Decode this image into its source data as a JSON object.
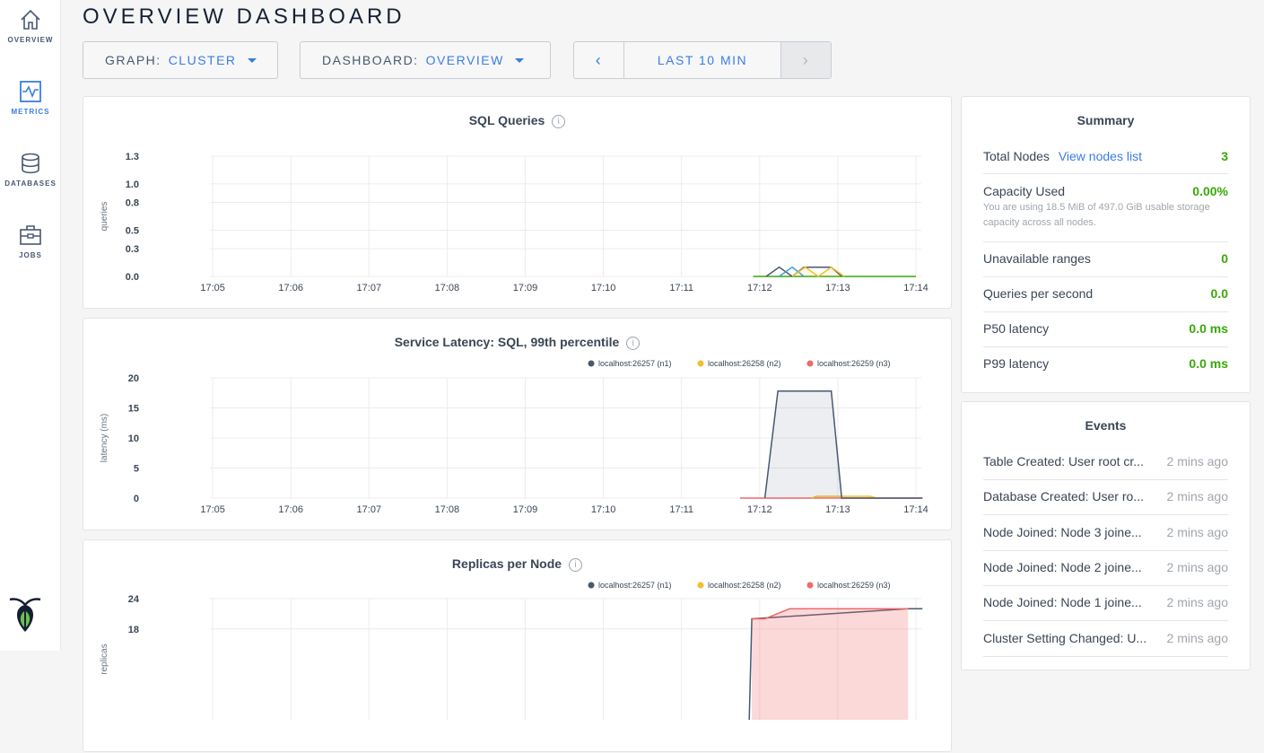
{
  "sidebar": {
    "items": [
      {
        "label": "OVERVIEW",
        "icon": "home-icon"
      },
      {
        "label": "METRICS",
        "icon": "metrics-icon",
        "active": true
      },
      {
        "label": "DATABASES",
        "icon": "database-icon"
      },
      {
        "label": "JOBS",
        "icon": "briefcase-icon"
      }
    ],
    "logo": "cockroach-logo"
  },
  "header": {
    "title": "OVERVIEW DASHBOARD"
  },
  "controls": {
    "graph_label": "GRAPH:",
    "graph_value": "CLUSTER",
    "dashboard_label": "DASHBOARD:",
    "dashboard_value": "OVERVIEW",
    "time_range": "LAST 10 MIN",
    "prev": "‹",
    "next": "›"
  },
  "colors": {
    "n1": "#475872",
    "n2": "#f2be2c",
    "n3": "#f16969",
    "blue": "#3a9de1",
    "green": "#37a806",
    "accent": "#3a7de1"
  },
  "chart_data": [
    {
      "type": "line",
      "title": "SQL Queries",
      "ylabel": "queries",
      "yticks": [
        "0.0",
        "0.3",
        "0.5",
        "0.8",
        "1.0",
        "1.3"
      ],
      "ylim": [
        0,
        1.3
      ],
      "xticks": [
        "17:05",
        "17:06",
        "17:07",
        "17:08",
        "17:09",
        "17:10",
        "17:11",
        "17:12",
        "17:13",
        "17:14"
      ],
      "xlim": [
        "17:04:00",
        "17:14:00"
      ],
      "legend": [],
      "series": [
        {
          "color": "#37a806",
          "points": [
            [
              "17:11:55",
              0
            ],
            [
              "17:14:00",
              0
            ]
          ]
        },
        {
          "color": "#475872",
          "points": [
            [
              "17:12:05",
              0
            ],
            [
              "17:12:15",
              0.1
            ],
            [
              "17:12:25",
              0
            ],
            [
              "17:12:34",
              0.1
            ],
            [
              "17:12:55",
              0.1
            ],
            [
              "17:13:03",
              0
            ]
          ]
        },
        {
          "color": "#3a9de1",
          "points": [
            [
              "17:12:15",
              0
            ],
            [
              "17:12:25",
              0.1
            ],
            [
              "17:12:34",
              0
            ]
          ]
        },
        {
          "color": "#f2be2c",
          "fill": true,
          "points": [
            [
              "17:12:25",
              0
            ],
            [
              "17:12:35",
              0.1
            ],
            [
              "17:12:45",
              0
            ],
            [
              "17:12:55",
              0.1
            ],
            [
              "17:13:05",
              0
            ]
          ]
        }
      ]
    },
    {
      "type": "line",
      "title": "Service Latency: SQL, 99th percentile",
      "ylabel": "latency (ms)",
      "yticks": [
        "0",
        "5",
        "10",
        "15",
        "20"
      ],
      "ylim": [
        0,
        20
      ],
      "xticks": [
        "17:05",
        "17:06",
        "17:07",
        "17:08",
        "17:09",
        "17:10",
        "17:11",
        "17:12",
        "17:13",
        "17:14"
      ],
      "xlim": [
        "17:04:00",
        "17:14:00"
      ],
      "legend": [
        {
          "name": "localhost:26257 (n1)",
          "color": "#475872"
        },
        {
          "name": "localhost:26258 (n2)",
          "color": "#f2be2c"
        },
        {
          "name": "localhost:26259 (n3)",
          "color": "#f16969"
        }
      ],
      "series": [
        {
          "color": "#f16969",
          "points": [
            [
              "17:11:45",
              0
            ],
            [
              "17:14:05",
              0
            ]
          ]
        },
        {
          "color": "#f2be2c",
          "points": [
            [
              "17:12:40",
              0
            ],
            [
              "17:12:44",
              0.3
            ],
            [
              "17:13:25",
              0.3
            ],
            [
              "17:13:30",
              0
            ]
          ]
        },
        {
          "color": "#475872",
          "fill": true,
          "points": [
            [
              "17:12:04",
              0
            ],
            [
              "17:12:14",
              17.8
            ],
            [
              "17:12:55",
              17.8
            ],
            [
              "17:13:03",
              0
            ],
            [
              "17:14:05",
              0
            ]
          ]
        }
      ]
    },
    {
      "type": "area",
      "title": "Replicas per Node",
      "ylabel": "replicas",
      "yticks": [
        "18",
        "24"
      ],
      "ylim": [
        0,
        24
      ],
      "xlim": [
        "17:04:00",
        "17:14:00"
      ],
      "legend": [
        {
          "name": "localhost:26257 (n1)",
          "color": "#475872"
        },
        {
          "name": "localhost:26258 (n2)",
          "color": "#f2be2c"
        },
        {
          "name": "localhost:26259 (n3)",
          "color": "#f16969"
        }
      ],
      "series": [
        {
          "color": "#475872",
          "points": [
            [
              "17:11:52",
              0
            ],
            [
              "17:11:54",
              20
            ],
            [
              "17:13:54",
              22
            ],
            [
              "17:14:05",
              22
            ]
          ]
        },
        {
          "color": "#f16969",
          "fill": true,
          "points": [
            [
              "17:11:54",
              20
            ],
            [
              "17:12:04",
              20
            ],
            [
              "17:12:23",
              22
            ],
            [
              "17:13:54",
              22
            ]
          ]
        }
      ]
    }
  ],
  "summary": {
    "title": "Summary",
    "rows": [
      {
        "label": "Total Nodes",
        "link": "View nodes list",
        "value": "3"
      },
      {
        "label": "Capacity Used",
        "value": "0.00%",
        "sub": "You are using 18.5 MiB of 497.0 GiB usable storage capacity across all nodes."
      },
      {
        "label": "Unavailable ranges",
        "value": "0"
      },
      {
        "label": "Queries per second",
        "value": "0.0"
      },
      {
        "label": "P50 latency",
        "value": "0.0 ms"
      },
      {
        "label": "P99 latency",
        "value": "0.0 ms"
      }
    ]
  },
  "events": {
    "title": "Events",
    "items": [
      {
        "label": "Table Created: User root cr...",
        "time": "2 mins ago"
      },
      {
        "label": "Database Created: User ro...",
        "time": "2 mins ago"
      },
      {
        "label": "Node Joined: Node 3 joine...",
        "time": "2 mins ago"
      },
      {
        "label": "Node Joined: Node 2 joine...",
        "time": "2 mins ago"
      },
      {
        "label": "Node Joined: Node 1 joine...",
        "time": "2 mins ago"
      },
      {
        "label": "Cluster Setting Changed: U...",
        "time": "2 mins ago"
      }
    ]
  }
}
